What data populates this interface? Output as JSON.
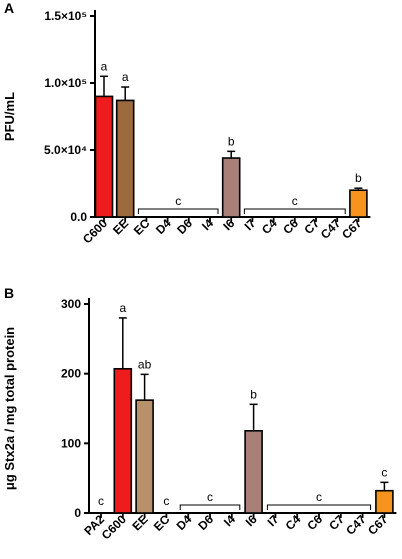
{
  "chart_data": [
    {
      "panel": "A",
      "type": "bar",
      "ylabel": "PFU/mL",
      "ylim": [
        0,
        150000
      ],
      "yticks": [
        {
          "v": 0,
          "label": "0.0"
        },
        {
          "v": 50000,
          "label": "5.0×10⁴"
        },
        {
          "v": 100000,
          "label": "1.0×10⁵"
        },
        {
          "v": 150000,
          "label": "1.5×10⁵"
        }
      ],
      "categories": [
        "C600",
        "EE",
        "EC",
        "D4",
        "D6",
        "I4",
        "I6",
        "I7",
        "C4",
        "C6",
        "C7",
        "C47",
        "C67"
      ],
      "values": [
        90000,
        87000,
        0,
        0,
        0,
        0,
        44000,
        0,
        0,
        0,
        0,
        0,
        20000
      ],
      "errors": [
        15000,
        10000,
        0,
        0,
        0,
        0,
        5000,
        0,
        0,
        0,
        0,
        0,
        1500
      ],
      "colors": [
        "#ee1c1c",
        "#9b6a3f",
        null,
        null,
        null,
        null,
        "#a98078",
        null,
        null,
        null,
        null,
        null,
        "#f7941d"
      ],
      "letters": [
        {
          "cat": "C600",
          "text": "a"
        },
        {
          "cat": "EE",
          "text": "a"
        },
        {
          "cat": "I6",
          "text": "b"
        },
        {
          "cat": "C67",
          "text": "b"
        }
      ],
      "brackets": [
        {
          "from": "EC",
          "to": "I4",
          "text": "c"
        },
        {
          "from": "I7",
          "to": "C47",
          "text": "c"
        }
      ]
    },
    {
      "panel": "B",
      "type": "bar",
      "ylabel": "μg Stx2a / mg total protein",
      "ylim": [
        0,
        300
      ],
      "yticks": [
        {
          "v": 0,
          "label": "0"
        },
        {
          "v": 100,
          "label": "100"
        },
        {
          "v": 200,
          "label": "200"
        },
        {
          "v": 300,
          "label": "300"
        }
      ],
      "categories": [
        "PA2",
        "C600",
        "EE",
        "EC",
        "D4",
        "D6",
        "I4",
        "I6",
        "I7",
        "C4",
        "C6",
        "C7",
        "C47",
        "C67"
      ],
      "values": [
        0,
        207,
        162,
        0,
        0,
        0,
        0,
        118,
        0,
        0,
        0,
        0,
        0,
        32
      ],
      "errors": [
        0,
        73,
        37,
        0,
        0,
        0,
        0,
        38,
        0,
        0,
        0,
        0,
        0,
        12
      ],
      "colors": [
        null,
        "#ee1c1c",
        "#b8906a",
        null,
        null,
        null,
        null,
        "#a98078",
        null,
        null,
        null,
        null,
        null,
        "#f7941d"
      ],
      "letters": [
        {
          "cat": "PA2",
          "text": "c"
        },
        {
          "cat": "C600",
          "text": "a"
        },
        {
          "cat": "EE",
          "text": "ab"
        },
        {
          "cat": "EC",
          "text": "c"
        },
        {
          "cat": "I6",
          "text": "b"
        },
        {
          "cat": "C67",
          "text": "c"
        }
      ],
      "brackets": [
        {
          "from": "D4",
          "to": "I4",
          "text": "c"
        },
        {
          "from": "I7",
          "to": "C47",
          "text": "c"
        }
      ]
    }
  ]
}
